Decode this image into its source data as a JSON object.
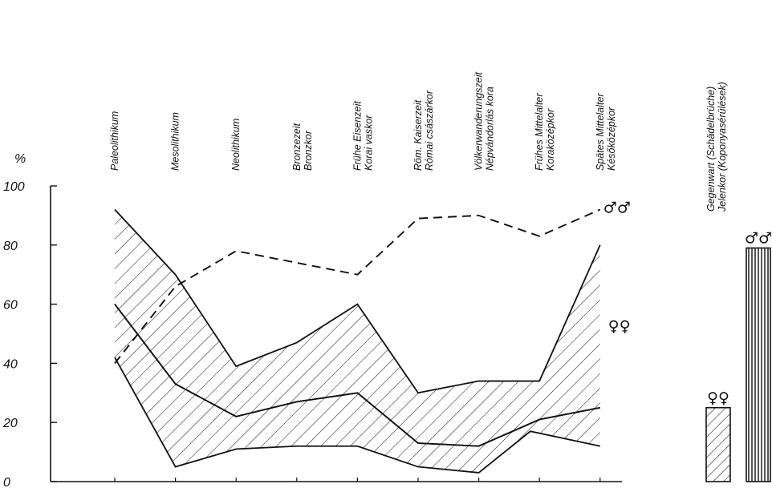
{
  "chart_data": {
    "type": "line",
    "y_unit_label": "%",
    "ylim": [
      0,
      100
    ],
    "yticks": [
      "0",
      "20",
      "40",
      "60",
      "80",
      "100"
    ],
    "grid": false,
    "periods": [
      "Paleolithikum",
      "Mesolithikum",
      "Neolithikum",
      "Bronzezeit|Bronzkor",
      "Frühe Eisenzeit|Korai vaskor",
      "Röm. Kaiserzeit|Római császárkor",
      "Völkerwanderungszeit|Népvándorlás kora",
      "Frühes Mittelalter|Koraközépkor",
      "Spätes Mittelalter|Későközépkor"
    ],
    "series": [
      {
        "name": "♂♂",
        "style": "dashed",
        "x": [
          0,
          1,
          2,
          3,
          4,
          5,
          6,
          7,
          8
        ],
        "y": [
          40,
          66,
          78,
          74,
          70,
          89,
          90,
          83,
          92
        ]
      }
    ],
    "bands": [
      {
        "name": "♀♀",
        "upper_x": [
          0,
          1,
          2,
          3,
          4,
          5,
          6,
          7,
          8
        ],
        "upper_y": [
          92,
          70,
          39,
          47,
          60,
          30,
          34,
          34,
          80
        ],
        "lower_x": [
          0,
          1,
          2,
          3,
          4,
          5,
          6,
          7,
          8
        ],
        "lower_y": [
          60,
          33,
          22,
          27,
          30,
          13,
          12,
          21,
          25
        ]
      },
      {
        "name": "",
        "upper_x": [
          0,
          1,
          2,
          3,
          4,
          5,
          6,
          7,
          8
        ],
        "upper_y": [
          60,
          33,
          22,
          27,
          30,
          13,
          12,
          21,
          25
        ],
        "lower_x": [
          0,
          1,
          2,
          3,
          4,
          5,
          6,
          6.85,
          8
        ],
        "lower_y": [
          42,
          5,
          11,
          12,
          12,
          5,
          3,
          17,
          12
        ]
      }
    ],
    "present": {
      "label": "Gegenwart (Schädelbrüche)|Jelenkor (Koponyasérülések)",
      "bars": [
        {
          "name": "♀♀",
          "value": 25,
          "pattern": "diagonal"
        },
        {
          "name": "♂♂",
          "value": 79,
          "pattern": "vertical"
        }
      ]
    }
  }
}
